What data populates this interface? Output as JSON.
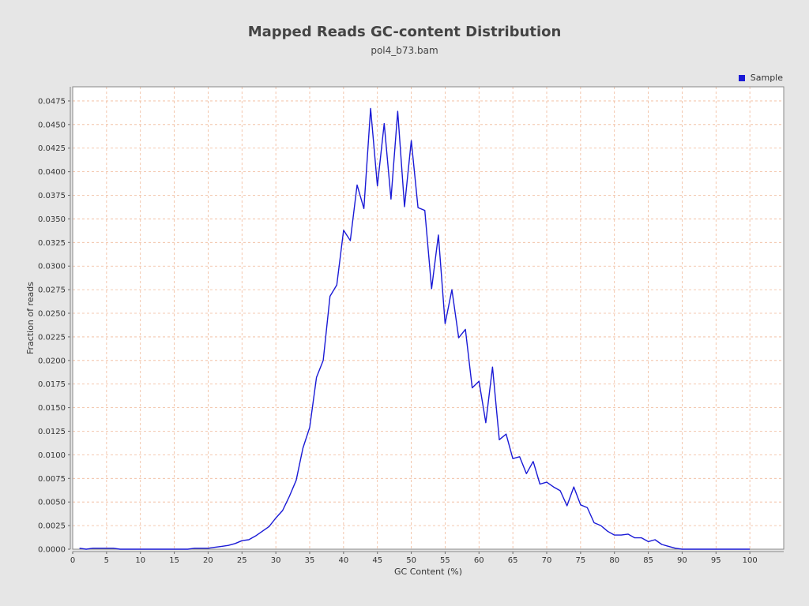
{
  "chart_data": {
    "type": "line",
    "title": "Mapped Reads GC-content Distribution",
    "subtitle": "pol4_b73.bam",
    "xlabel": "GC Content (%)",
    "ylabel": "Fraction of reads",
    "xlim": [
      0,
      105
    ],
    "ylim": [
      0,
      0.049
    ],
    "x_ticks": [
      "0",
      "5",
      "10",
      "15",
      "20",
      "25",
      "30",
      "35",
      "40",
      "45",
      "50",
      "55",
      "60",
      "65",
      "70",
      "75",
      "80",
      "85",
      "90",
      "95",
      "100"
    ],
    "y_ticks": [
      "0.0000",
      "0.0025",
      "0.0050",
      "0.0075",
      "0.0100",
      "0.0125",
      "0.0150",
      "0.0175",
      "0.0200",
      "0.0225",
      "0.0250",
      "0.0275",
      "0.0300",
      "0.0325",
      "0.0350",
      "0.0375",
      "0.0400",
      "0.0425",
      "0.0450",
      "0.0475"
    ],
    "grid": true,
    "legend_position": "top-right",
    "series": [
      {
        "name": "Sample",
        "color": "#1a1ad6",
        "x": [
          1,
          2,
          3,
          4,
          5,
          6,
          7,
          8,
          9,
          10,
          11,
          12,
          13,
          14,
          15,
          16,
          17,
          18,
          19,
          20,
          21,
          22,
          23,
          24,
          25,
          26,
          27,
          28,
          29,
          30,
          31,
          32,
          33,
          34,
          35,
          36,
          37,
          38,
          39,
          40,
          41,
          42,
          43,
          44,
          45,
          46,
          47,
          48,
          49,
          50,
          51,
          52,
          53,
          54,
          55,
          56,
          57,
          58,
          59,
          60,
          61,
          62,
          63,
          64,
          65,
          66,
          67,
          68,
          69,
          70,
          71,
          72,
          73,
          74,
          75,
          76,
          77,
          78,
          79,
          80,
          81,
          82,
          83,
          84,
          85,
          86,
          87,
          88,
          89,
          90,
          91,
          92,
          93,
          94,
          95,
          96,
          97,
          98,
          99,
          100
        ],
        "y": [
          0.0001,
          0.0,
          0.0001,
          0.0001,
          0.0001,
          0.0001,
          0.0,
          0.0,
          0.0,
          0.0,
          0.0,
          0.0,
          0.0,
          0.0,
          0.0,
          0.0,
          0.0,
          0.0001,
          0.0001,
          0.0001,
          0.0002,
          0.0003,
          0.0004,
          0.0006,
          0.0009,
          0.001,
          0.0014,
          0.0019,
          0.0024,
          0.0033,
          0.0041,
          0.0056,
          0.0073,
          0.0107,
          0.0129,
          0.0182,
          0.02,
          0.0268,
          0.028,
          0.0338,
          0.0327,
          0.0386,
          0.0361,
          0.0467,
          0.0385,
          0.0451,
          0.0371,
          0.0464,
          0.0363,
          0.0433,
          0.0362,
          0.0359,
          0.0276,
          0.0333,
          0.0239,
          0.0275,
          0.0224,
          0.0233,
          0.0171,
          0.0178,
          0.0134,
          0.0193,
          0.0116,
          0.0122,
          0.0096,
          0.0098,
          0.008,
          0.0093,
          0.0069,
          0.0071,
          0.0066,
          0.0062,
          0.0046,
          0.0066,
          0.0047,
          0.0044,
          0.0028,
          0.0025,
          0.0019,
          0.0015,
          0.0015,
          0.0016,
          0.0012,
          0.0012,
          0.0008,
          0.001,
          0.0005,
          0.0003,
          0.0001,
          0.0,
          0.0,
          0.0,
          0.0,
          0.0,
          0.0,
          0.0,
          0.0,
          0.0,
          0.0,
          0.0
        ]
      }
    ]
  },
  "colors": {
    "background": "#e6e6e6",
    "plot_background": "#ffffff",
    "grid": "#f0b898",
    "series": "#1a1ad6"
  }
}
